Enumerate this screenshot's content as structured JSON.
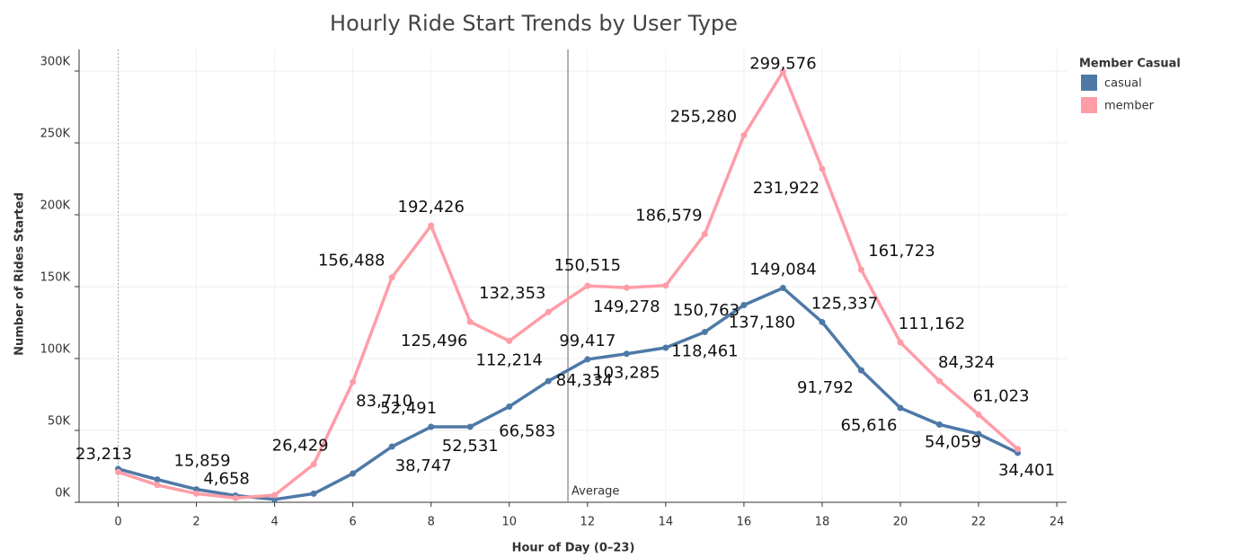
{
  "chart_data": {
    "type": "line",
    "title": "Hourly Ride Start Trends by User Type",
    "x_label": "Hour of Day (0–23)",
    "y_label": "Number of Rides Started",
    "legend_title": "Member Casual",
    "legend_position": "right",
    "grid": true,
    "x": [
      0,
      1,
      2,
      3,
      4,
      5,
      6,
      7,
      8,
      9,
      10,
      11,
      12,
      13,
      14,
      15,
      16,
      17,
      18,
      19,
      20,
      21,
      22,
      23
    ],
    "series": [
      {
        "name": "casual",
        "color": "#4e79a7",
        "values": [
          23213,
          15859,
          9000,
          4658,
          2000,
          6000,
          20000,
          38747,
          52491,
          52531,
          66583,
          84334,
          99417,
          103285,
          107500,
          118461,
          137180,
          149084,
          125337,
          91792,
          65616,
          54059,
          47500,
          34401
        ],
        "value_labels": [
          "23,213",
          "15,859",
          null,
          "4,658",
          null,
          null,
          null,
          "38,747",
          "52,491",
          "52,531",
          "66,583",
          "84,334",
          "99,417",
          "103,285",
          null,
          "118,461",
          "137,180",
          "149,084",
          "125,337",
          "91,792",
          "65,616",
          "54,059",
          null,
          "34,401"
        ]
      },
      {
        "name": "member",
        "color": "#ff9da7",
        "values": [
          21000,
          12000,
          6000,
          3000,
          5000,
          26429,
          83710,
          156488,
          192426,
          125496,
          112214,
          132353,
          150515,
          149278,
          150763,
          186579,
          255280,
          299576,
          231922,
          161723,
          111162,
          84324,
          61023,
          37000
        ],
        "value_labels": [
          null,
          null,
          null,
          null,
          null,
          "26,429",
          "83,710",
          "156,488",
          "192,426",
          "125,496",
          "112,214",
          "132,353",
          "150,515",
          "149,278",
          "150,763",
          "186,579",
          "255,280",
          "299,576",
          "231,922",
          "161,723",
          "111,162",
          "84,324",
          "61,023",
          null
        ]
      }
    ],
    "reference_line": {
      "value": 11.5,
      "label": "Average"
    },
    "xlim": [
      -1,
      24.25
    ],
    "xticks": [
      0,
      2,
      4,
      6,
      8,
      10,
      12,
      14,
      16,
      18,
      20,
      22,
      24
    ],
    "ylim": [
      0,
      315000
    ],
    "yticks": [
      {
        "value": 0,
        "label": "0K"
      },
      {
        "value": 50000,
        "label": "50K"
      },
      {
        "value": 100000,
        "label": "100K"
      },
      {
        "value": 150000,
        "label": "150K"
      },
      {
        "value": 200000,
        "label": "200K"
      },
      {
        "value": 250000,
        "label": "250K"
      },
      {
        "value": 300000,
        "label": "300K"
      }
    ]
  }
}
